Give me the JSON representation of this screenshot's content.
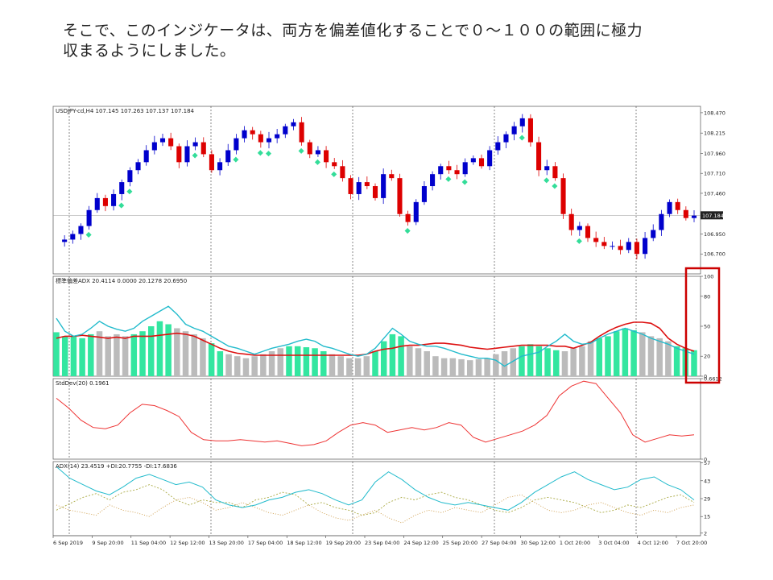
{
  "caption": {
    "line1": "そこで、このインジケータは、両方を偏差値化することで０～１００の範囲に極力",
    "line2": "収まるようにしました。"
  },
  "colors": {
    "bull": "#0000cc",
    "bear": "#dd0000",
    "signal": "#33dd99",
    "adx_line": "#22bbcc",
    "avg_line": "#dd1111",
    "hist_green": "#33e6a0",
    "hist_gray": "#bbbbbb",
    "stddev_line": "#ee3333",
    "plus_di": "#aaaa44",
    "minus_di": "#cc9944",
    "highlight": "#cc0000"
  },
  "chart_data": [
    {
      "type": "candlestick",
      "header": "USDJPY-cd,H4  107.145 107.263 107.137 107.184",
      "ylim": [
        106.45,
        108.55
      ],
      "y_ticks": [
        "108.470",
        "108.215",
        "107.960",
        "107.710",
        "107.460",
        "107.184",
        "106.950",
        "106.700"
      ],
      "y_tick_values": [
        108.47,
        108.215,
        107.96,
        107.71,
        107.46,
        107.184,
        106.95,
        106.7
      ],
      "current_price": "107.184",
      "close_path": [
        106.85,
        106.88,
        106.95,
        107.05,
        107.25,
        107.4,
        107.3,
        107.45,
        107.6,
        107.75,
        107.85,
        108.0,
        108.1,
        108.15,
        108.05,
        107.85,
        108.05,
        108.1,
        107.95,
        107.75,
        107.85,
        108.0,
        108.15,
        108.25,
        108.2,
        108.1,
        108.15,
        108.2,
        108.3,
        108.35,
        108.1,
        107.95,
        108.0,
        107.85,
        107.8,
        107.65,
        107.45,
        107.6,
        107.55,
        107.4,
        107.7,
        107.65,
        107.2,
        107.1,
        107.35,
        107.55,
        107.7,
        107.8,
        107.75,
        107.7,
        107.85,
        107.9,
        107.8,
        108.0,
        108.1,
        108.2,
        108.3,
        108.4,
        108.1,
        107.75,
        107.8,
        107.65,
        107.2,
        107.0,
        107.05,
        106.9,
        106.85,
        106.8,
        106.8,
        106.75,
        106.85,
        106.7,
        106.9,
        107.0,
        107.2,
        107.35,
        107.25,
        107.15,
        107.18
      ]
    },
    {
      "type": "line",
      "header": "標準偏差ADX 20.4114 0.0000 20.1278 20.6950",
      "ylim": [
        0,
        100
      ],
      "y_ticks": [
        "100",
        "80",
        "50",
        "20",
        "0"
      ],
      "y_tick_values": [
        100,
        80,
        50,
        20,
        0
      ],
      "series": [
        {
          "values": [
            58,
            45,
            40,
            42,
            48,
            55,
            50,
            47,
            45,
            48,
            55,
            60,
            65,
            70,
            62,
            52,
            48,
            45,
            40,
            35,
            30,
            28,
            25,
            22,
            25,
            28,
            30,
            32,
            35,
            37,
            35,
            30,
            28,
            25,
            22,
            20,
            22,
            28,
            38,
            48,
            42,
            35,
            32,
            30,
            30,
            28,
            25,
            22,
            20,
            18,
            18,
            16,
            10,
            15,
            20,
            22,
            24,
            30,
            35,
            42,
            35,
            32,
            33,
            38,
            42,
            45,
            48,
            45,
            42,
            38,
            35,
            32,
            28,
            25,
            22
          ]
        },
        {
          "values": [
            38,
            40,
            40,
            41,
            40,
            39,
            38,
            39,
            38,
            40,
            40,
            40,
            41,
            42,
            43,
            42,
            40,
            36,
            32,
            28,
            25,
            23,
            22,
            21,
            21,
            21,
            21,
            21,
            21,
            21,
            21,
            21,
            21,
            21,
            21,
            21,
            22,
            25,
            27,
            28,
            30,
            31,
            31,
            32,
            33,
            33,
            32,
            31,
            29,
            28,
            27,
            28,
            29,
            30,
            31,
            31,
            31,
            31,
            30,
            30,
            28,
            31,
            34,
            40,
            45,
            49,
            52,
            54,
            54,
            53,
            48,
            38,
            32,
            28,
            25
          ]
        },
        {
          "values": [
            44,
            40,
            40,
            38,
            42,
            45,
            40,
            42,
            40,
            42,
            45,
            50,
            55,
            52,
            48,
            45,
            42,
            38,
            33,
            25,
            22,
            20,
            18,
            20,
            22,
            25,
            28,
            30,
            30,
            29,
            28,
            25,
            22,
            20,
            18,
            18,
            20,
            25,
            35,
            42,
            40,
            30,
            28,
            25,
            20,
            18,
            18,
            17,
            16,
            17,
            18,
            22,
            25,
            28,
            30,
            32,
            30,
            28,
            26,
            25,
            28,
            30,
            35,
            38,
            40,
            45,
            48,
            46,
            44,
            40,
            38,
            35,
            30,
            28,
            26
          ]
        }
      ]
    },
    {
      "type": "line",
      "header": "StdDev(20) 0.1961",
      "ylim": [
        0,
        0.6612
      ],
      "y_ticks": [
        "0.6612",
        "0"
      ],
      "y_tick_values": [
        0.6612,
        0
      ],
      "series": [
        {
          "values": [
            0.5,
            0.42,
            0.32,
            0.26,
            0.25,
            0.28,
            0.38,
            0.45,
            0.44,
            0.4,
            0.35,
            0.22,
            0.16,
            0.15,
            0.15,
            0.16,
            0.15,
            0.14,
            0.15,
            0.13,
            0.11,
            0.12,
            0.15,
            0.22,
            0.28,
            0.3,
            0.28,
            0.22,
            0.24,
            0.26,
            0.24,
            0.26,
            0.3,
            0.28,
            0.18,
            0.14,
            0.17,
            0.2,
            0.23,
            0.28,
            0.36,
            0.52,
            0.6,
            0.64,
            0.62,
            0.5,
            0.38,
            0.2,
            0.14,
            0.17,
            0.2,
            0.19,
            0.2
          ]
        }
      ]
    },
    {
      "type": "line",
      "header": "ADX(14) 23.4519 +DI:20.7755 -DI:17.6836",
      "ylim": [
        0,
        58
      ],
      "y_ticks": [
        "57",
        "43",
        "29",
        "15",
        "2"
      ],
      "y_tick_values": [
        57,
        43,
        29,
        15,
        2
      ],
      "series": [
        {
          "values": [
            54,
            45,
            40,
            35,
            32,
            38,
            45,
            48,
            44,
            40,
            42,
            38,
            28,
            24,
            22,
            24,
            28,
            30,
            34,
            36,
            33,
            28,
            24,
            28,
            42,
            50,
            44,
            36,
            30,
            26,
            24,
            26,
            24,
            22,
            20,
            26,
            34,
            40,
            46,
            50,
            44,
            40,
            36,
            38,
            44,
            46,
            40,
            36,
            28
          ]
        },
        {
          "values": [
            20,
            25,
            30,
            33,
            28,
            34,
            36,
            40,
            36,
            28,
            24,
            28,
            26,
            26,
            22,
            28,
            30,
            34,
            32,
            24,
            26,
            22,
            20,
            16,
            18,
            26,
            30,
            28,
            32,
            34,
            30,
            28,
            24,
            20,
            18,
            22,
            28,
            30,
            28,
            26,
            22,
            18,
            20,
            24,
            22,
            26,
            30,
            32,
            26
          ]
        },
        {
          "values": [
            24,
            20,
            18,
            16,
            24,
            20,
            18,
            15,
            22,
            28,
            30,
            26,
            20,
            22,
            26,
            22,
            18,
            16,
            20,
            24,
            18,
            14,
            12,
            16,
            20,
            14,
            10,
            16,
            20,
            18,
            22,
            20,
            18,
            24,
            30,
            32,
            26,
            20,
            18,
            20,
            24,
            26,
            22,
            18,
            16,
            20,
            18,
            22,
            24
          ]
        }
      ]
    }
  ],
  "x_labels": [
    "6 Sep 2019",
    "9 Sep 20:00",
    "11 Sep 04:00",
    "12 Sep 12:00",
    "13 Sep 20:00",
    "17 Sep 04:00",
    "18 Sep 12:00",
    "19 Sep 20:00",
    "23 Sep 04:00",
    "24 Sep 12:00",
    "25 Sep 20:00",
    "27 Sep 04:00",
    "30 Sep 12:00",
    "1 Oct 20:00",
    "3 Oct 04:00",
    "4 Oct 12:00",
    "7 Oct 20:00"
  ]
}
